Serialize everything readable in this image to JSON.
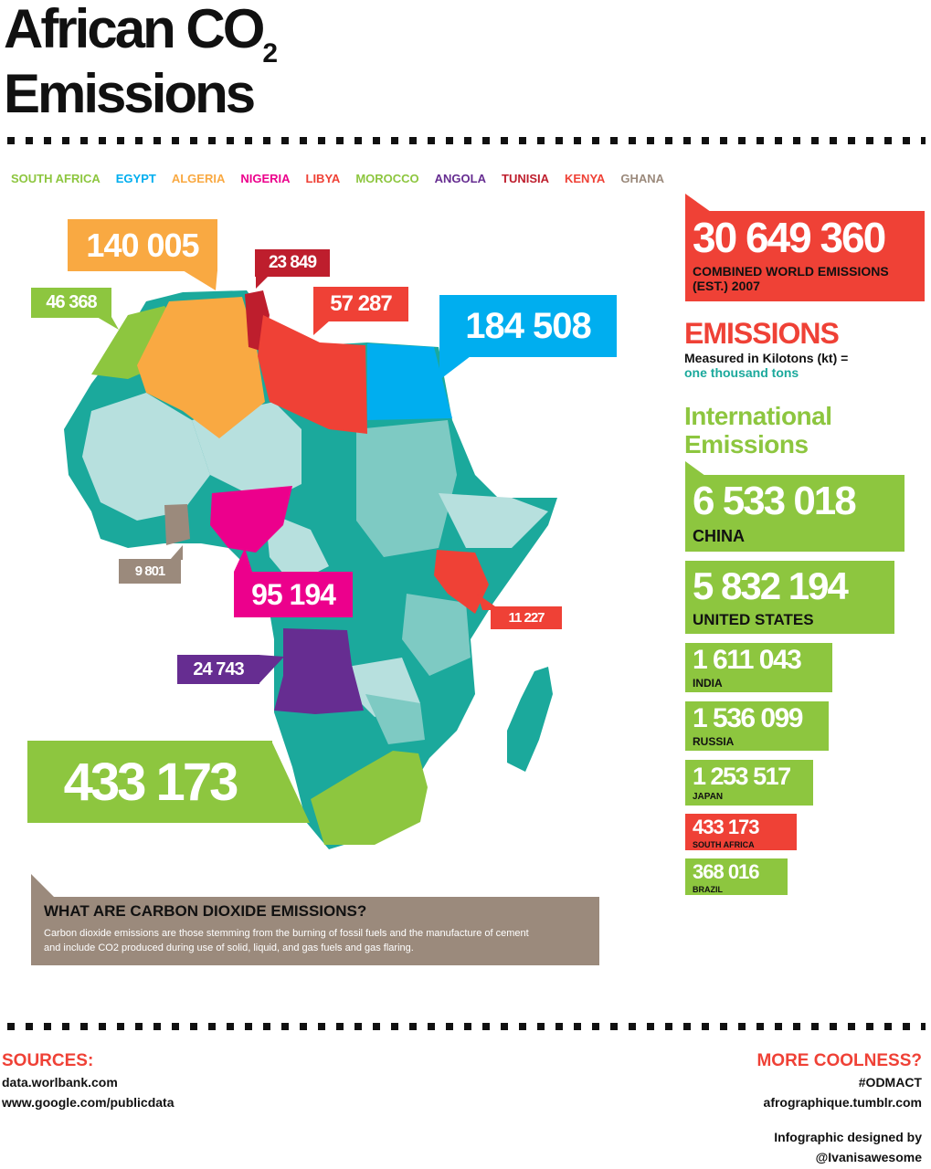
{
  "title": {
    "line1": "African CO",
    "sub": "2",
    "line2": "Emissions"
  },
  "legend": [
    {
      "name": "SOUTH AFRICA",
      "color": "#8dc63f"
    },
    {
      "name": "EGYPT",
      "color": "#00aeef"
    },
    {
      "name": "ALGERIA",
      "color": "#f9a942"
    },
    {
      "name": "NIGERIA",
      "color": "#ec008c"
    },
    {
      "name": "LIBYA",
      "color": "#ef4136"
    },
    {
      "name": "MOROCCO",
      "color": "#8dc63f"
    },
    {
      "name": "ANGOLA",
      "color": "#662d91"
    },
    {
      "name": "TUNISIA",
      "color": "#be1e2d"
    },
    {
      "name": "KENYA",
      "color": "#ef4136"
    },
    {
      "name": "GHANA",
      "color": "#9b8a7c"
    }
  ],
  "map": {
    "algeria": "140 005",
    "tunisia": "23 849",
    "morocco": "46 368",
    "libya": "57 287",
    "egypt": "184 508",
    "ghana": "9 801",
    "nigeria": "95 194",
    "kenya": "11 227",
    "angola": "24 743",
    "south_africa": "433 173"
  },
  "world": {
    "value": "30 649 360",
    "label1": "COMBINED WORLD EMISSIONS",
    "label2": "(EST.) 2007"
  },
  "emissions": {
    "heading": "EMISSIONS",
    "line1": "Measured in Kilotons (kt) =",
    "line2": "one thousand tons"
  },
  "international": {
    "heading1": "International",
    "heading2": "Emissions"
  },
  "countries": [
    {
      "value": "6 533 018",
      "name": "CHINA"
    },
    {
      "value": "5 832 194",
      "name": "UNITED STATES"
    },
    {
      "value": "1 611 043",
      "name": "INDIA"
    },
    {
      "value": "1 536 099",
      "name": "RUSSIA"
    },
    {
      "value": "1 253 517",
      "name": "JAPAN"
    },
    {
      "value": "433 173",
      "name": "SOUTH AFRICA"
    },
    {
      "value": "368 016",
      "name": "BRAZIL"
    }
  ],
  "info": {
    "heading": "WHAT ARE CARBON DIOXIDE EMISSIONS?",
    "text1": "Carbon dioxide emissions are those stemming from the burning of fossil fuels and the manufacture of cement",
    "text2": "and include CO2 produced during use of solid, liquid, and gas fuels and gas flaring."
  },
  "sources": {
    "heading": "SOURCES:",
    "line1": "data.worlbank.com",
    "line2": "www.google.com/publicdata"
  },
  "more": {
    "heading": "MORE COOLNESS?",
    "line1": "#ODMACT",
    "line2": "afrographique.tumblr.com",
    "credit1": "Infographic designed by",
    "credit2": "@Ivanisawesome"
  }
}
